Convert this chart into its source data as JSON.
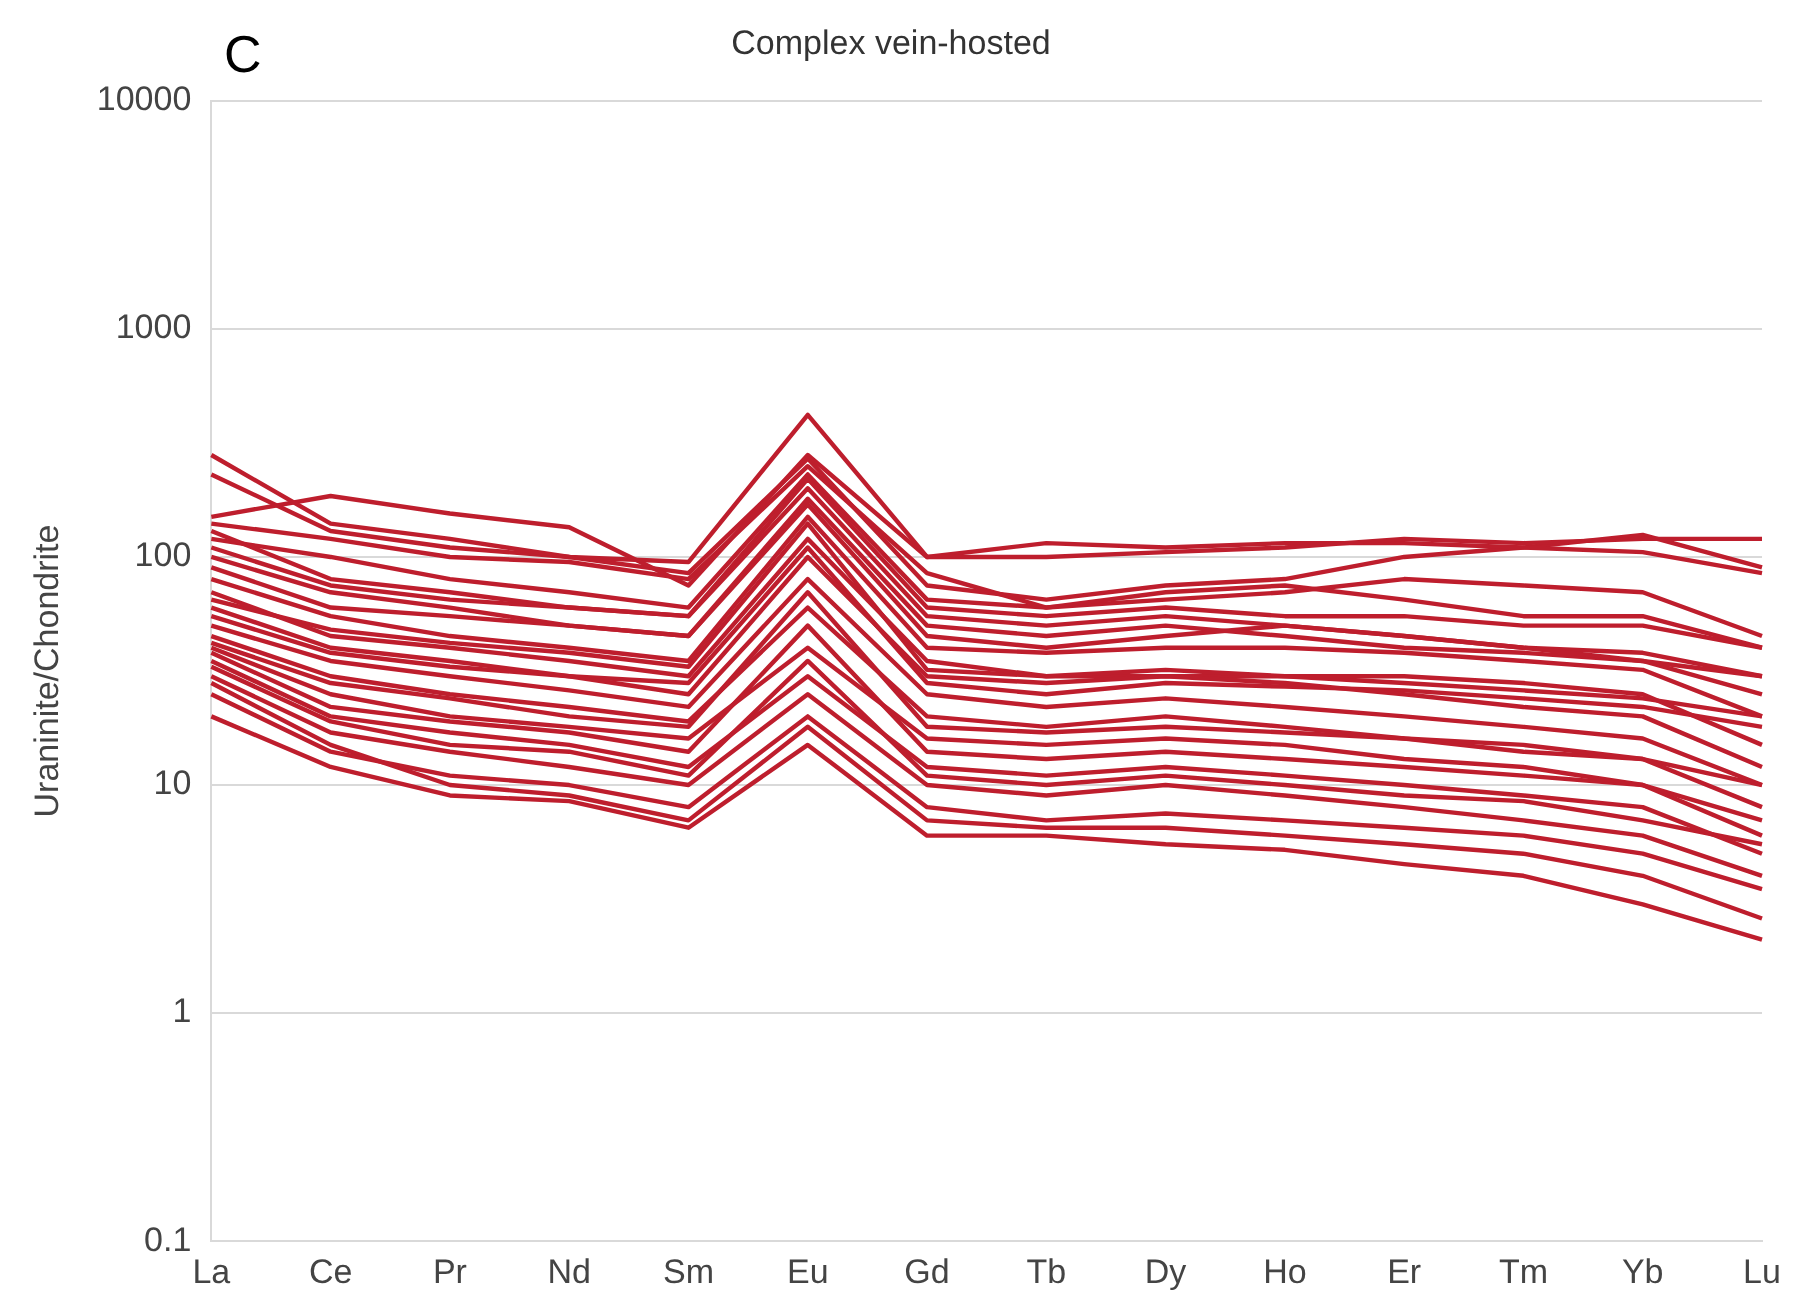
{
  "chart_data": {
    "type": "line",
    "title": "Complex vein-hosted",
    "ylabel": "Uraninite/Chondrite",
    "annotations": [
      "C"
    ],
    "categories": [
      "La",
      "Ce",
      "Pr",
      "Nd",
      "Sm",
      "Eu",
      "Gd",
      "Tb",
      "Dy",
      "Ho",
      "Er",
      "Tm",
      "Yb",
      "Lu"
    ],
    "log": "y",
    "ylim": [
      0.1,
      10000
    ],
    "yticks": [
      0.1,
      1,
      10,
      100,
      1000,
      10000
    ],
    "grid": "y",
    "legend": false,
    "marker": "none",
    "line_style": "solid",
    "series": [
      {
        "color": "#be1e2d",
        "values": [
          280,
          140,
          120,
          100,
          95,
          420,
          100,
          100,
          105,
          110,
          120,
          115,
          120,
          120
        ]
      },
      {
        "color": "#be1e2d",
        "values": [
          150,
          185,
          155,
          135,
          75,
          280,
          100,
          115,
          110,
          115,
          115,
          110,
          105,
          85
        ]
      },
      {
        "color": "#be1e2d",
        "values": [
          230,
          130,
          110,
          100,
          85,
          270,
          75,
          65,
          75,
          80,
          100,
          110,
          125,
          90
        ]
      },
      {
        "color": "#be1e2d",
        "values": [
          140,
          120,
          100,
          95,
          80,
          250,
          85,
          60,
          70,
          75,
          65,
          55,
          55,
          40
        ]
      },
      {
        "color": "#be1e2d",
        "values": [
          130,
          80,
          70,
          60,
          55,
          200,
          55,
          50,
          55,
          50,
          45,
          40,
          35,
          30
        ]
      },
      {
        "color": "#be1e2d",
        "values": [
          100,
          70,
          60,
          50,
          45,
          180,
          50,
          45,
          50,
          45,
          40,
          38,
          35,
          25
        ]
      },
      {
        "color": "#be1e2d",
        "values": [
          80,
          55,
          45,
          40,
          35,
          150,
          40,
          38,
          40,
          40,
          38,
          35,
          32,
          20
        ]
      },
      {
        "color": "#be1e2d",
        "values": [
          70,
          45,
          40,
          35,
          30,
          120,
          35,
          30,
          32,
          30,
          30,
          28,
          25,
          15
        ]
      },
      {
        "color": "#be1e2d",
        "values": [
          60,
          40,
          35,
          30,
          25,
          100,
          30,
          28,
          30,
          28,
          25,
          22,
          20,
          12
        ]
      },
      {
        "color": "#be1e2d",
        "values": [
          50,
          35,
          30,
          26,
          22,
          80,
          25,
          22,
          24,
          22,
          20,
          18,
          16,
          10
        ]
      },
      {
        "color": "#be1e2d",
        "values": [
          45,
          30,
          25,
          22,
          19,
          60,
          20,
          18,
          20,
          18,
          16,
          15,
          13,
          8
        ]
      },
      {
        "color": "#be1e2d",
        "values": [
          40,
          25,
          20,
          18,
          16,
          40,
          16,
          15,
          16,
          15,
          13,
          12,
          10,
          7
        ]
      },
      {
        "color": "#be1e2d",
        "values": [
          35,
          20,
          17,
          15,
          12,
          30,
          12,
          11,
          12,
          11,
          10,
          9,
          8,
          5
        ]
      },
      {
        "color": "#be1e2d",
        "values": [
          30,
          17,
          14,
          12,
          10,
          25,
          10,
          9,
          10,
          9,
          8,
          7,
          6,
          4
        ]
      },
      {
        "color": "#be1e2d",
        "values": [
          25,
          14,
          11,
          10,
          8,
          20,
          8,
          7,
          7.5,
          7,
          6.5,
          6,
          5,
          3.5
        ]
      },
      {
        "color": "#be1e2d",
        "values": [
          20,
          12,
          9,
          8.5,
          6.5,
          15,
          6,
          6,
          5.5,
          5.2,
          4.5,
          4,
          3,
          2.1
        ]
      },
      {
        "color": "#be1e2d",
        "values": [
          28,
          15,
          10,
          9,
          7,
          18,
          7,
          6.5,
          6.5,
          6,
          5.5,
          5,
          4,
          2.6
        ]
      },
      {
        "color": "#be1e2d",
        "values": [
          90,
          60,
          55,
          50,
          45,
          170,
          45,
          40,
          45,
          50,
          45,
          40,
          38,
          30
        ]
      },
      {
        "color": "#be1e2d",
        "values": [
          110,
          75,
          65,
          60,
          55,
          220,
          60,
          55,
          60,
          55,
          55,
          50,
          50,
          40
        ]
      },
      {
        "color": "#be1e2d",
        "values": [
          55,
          38,
          33,
          30,
          28,
          110,
          28,
          25,
          28,
          27,
          26,
          24,
          22,
          18
        ]
      },
      {
        "color": "#be1e2d",
        "values": [
          42,
          28,
          24,
          20,
          18,
          70,
          18,
          17,
          18,
          17,
          16,
          14,
          13,
          10
        ]
      },
      {
        "color": "#be1e2d",
        "values": [
          38,
          22,
          19,
          17,
          14,
          50,
          14,
          13,
          14,
          13,
          12,
          11,
          10,
          6
        ]
      },
      {
        "color": "#be1e2d",
        "values": [
          65,
          48,
          42,
          38,
          33,
          140,
          32,
          30,
          30,
          30,
          28,
          26,
          24,
          20
        ]
      },
      {
        "color": "#be1e2d",
        "values": [
          120,
          100,
          80,
          70,
          60,
          230,
          65,
          60,
          65,
          70,
          80,
          75,
          70,
          45
        ]
      },
      {
        "color": "#be1e2d",
        "values": [
          33,
          19,
          15,
          14,
          11,
          35,
          11,
          10,
          11,
          10,
          9,
          8.5,
          7,
          5.5
        ]
      }
    ]
  }
}
